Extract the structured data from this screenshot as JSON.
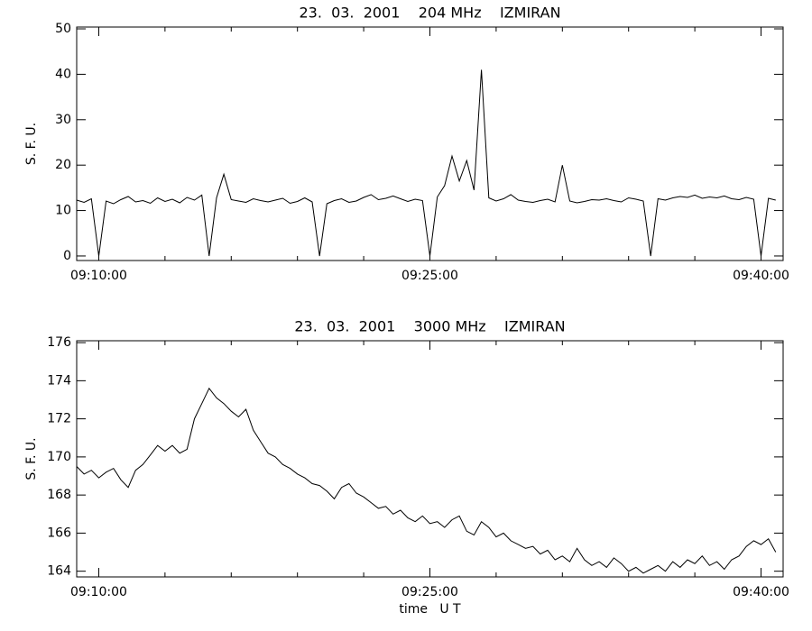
{
  "chart_data": [
    {
      "type": "line",
      "title": "23.  03.  2001    204 MHz    IZMIRAN",
      "ylabel": "S. F. U.",
      "color": "#000000",
      "xlim": [
        "09:09:00",
        "09:41:00"
      ],
      "xticks": [
        "09:10:00",
        "09:25:00",
        "09:40:00"
      ],
      "minor_xticks": [
        "09:13:00",
        "09:16:00",
        "09:19:00",
        "09:22:00",
        "09:28:00",
        "09:31:00",
        "09:34:00",
        "09:37:00"
      ],
      "ylim": [
        -1,
        50.4
      ],
      "yticks": [
        0,
        10,
        20,
        30,
        40,
        50
      ],
      "x": [
        "09:09:00",
        "09:09:20",
        "09:09:40",
        "09:10:00",
        "09:10:20",
        "09:10:40",
        "09:11:00",
        "09:11:20",
        "09:11:40",
        "09:12:00",
        "09:12:20",
        "09:12:40",
        "09:13:00",
        "09:13:20",
        "09:13:40",
        "09:14:00",
        "09:14:20",
        "09:14:40",
        "09:15:00",
        "09:15:20",
        "09:15:40",
        "09:16:00",
        "09:16:20",
        "09:16:40",
        "09:17:00",
        "09:17:20",
        "09:17:40",
        "09:18:00",
        "09:18:20",
        "09:18:40",
        "09:19:00",
        "09:19:20",
        "09:19:40",
        "09:20:00",
        "09:20:20",
        "09:20:40",
        "09:21:00",
        "09:21:20",
        "09:21:40",
        "09:22:00",
        "09:22:20",
        "09:22:40",
        "09:23:00",
        "09:23:20",
        "09:23:40",
        "09:24:00",
        "09:24:20",
        "09:24:40",
        "09:25:00",
        "09:25:20",
        "09:25:40",
        "09:26:00",
        "09:26:20",
        "09:26:40",
        "09:27:00",
        "09:27:20",
        "09:27:40",
        "09:28:00",
        "09:28:20",
        "09:28:40",
        "09:29:00",
        "09:29:20",
        "09:29:40",
        "09:30:00",
        "09:30:20",
        "09:30:40",
        "09:31:00",
        "09:31:20",
        "09:31:40",
        "09:32:00",
        "09:32:20",
        "09:32:40",
        "09:33:00",
        "09:33:20",
        "09:33:40",
        "09:34:00",
        "09:34:20",
        "09:34:40",
        "09:35:00",
        "09:35:20",
        "09:35:40",
        "09:36:00",
        "09:36:20",
        "09:36:40",
        "09:37:00",
        "09:37:20",
        "09:37:40",
        "09:38:00",
        "09:38:20",
        "09:38:40",
        "09:39:00",
        "09:39:20",
        "09:39:40",
        "09:40:00",
        "09:40:20",
        "09:40:40"
      ],
      "values": [
        12.3,
        11.8,
        12.6,
        0,
        12.1,
        11.5,
        12.4,
        13.1,
        11.9,
        12.2,
        11.6,
        12.8,
        12.0,
        12.5,
        11.7,
        12.9,
        12.3,
        13.4,
        0,
        12.8,
        18,
        12.4,
        12.1,
        11.8,
        12.6,
        12.2,
        11.9,
        12.3,
        12.7,
        11.6,
        12.0,
        12.8,
        11.9,
        0,
        11.5,
        12.2,
        12.6,
        11.8,
        12.1,
        12.9,
        13.5,
        12.4,
        12.7,
        13.2,
        12.6,
        12.0,
        12.5,
        12.2,
        0,
        13.0,
        15.5,
        22,
        16.5,
        21,
        14.5,
        41,
        12.8,
        12.1,
        12.6,
        13.5,
        12.3,
        12.0,
        11.8,
        12.2,
        12.5,
        11.9,
        20,
        12.1,
        11.7,
        12.0,
        12.4,
        12.3,
        12.6,
        12.2,
        11.9,
        12.8,
        12.5,
        12.1,
        0,
        12.6,
        12.3,
        12.8,
        13.1,
        12.9,
        13.4,
        12.7,
        13.0,
        12.8,
        13.2,
        12.6,
        12.4,
        12.9,
        12.5,
        0,
        12.7,
        12.3
      ]
    },
    {
      "type": "line",
      "title": "23.  03.  2001    3000 MHz    IZMIRAN",
      "ylabel": "S. F. U.",
      "xlabel": "time   U T",
      "color": "#000000",
      "xlim": [
        "09:09:00",
        "09:41:00"
      ],
      "xticks": [
        "09:10:00",
        "09:25:00",
        "09:40:00"
      ],
      "minor_xticks": [
        "09:13:00",
        "09:16:00",
        "09:19:00",
        "09:22:00",
        "09:28:00",
        "09:31:00",
        "09:34:00",
        "09:37:00"
      ],
      "ylim": [
        163.7,
        176.1
      ],
      "yticks": [
        164,
        166,
        168,
        170,
        172,
        174,
        176
      ],
      "x": [
        "09:09:00",
        "09:09:20",
        "09:09:40",
        "09:10:00",
        "09:10:20",
        "09:10:40",
        "09:11:00",
        "09:11:20",
        "09:11:40",
        "09:12:00",
        "09:12:20",
        "09:12:40",
        "09:13:00",
        "09:13:20",
        "09:13:40",
        "09:14:00",
        "09:14:20",
        "09:14:40",
        "09:15:00",
        "09:15:20",
        "09:15:40",
        "09:16:00",
        "09:16:20",
        "09:16:40",
        "09:17:00",
        "09:17:20",
        "09:17:40",
        "09:18:00",
        "09:18:20",
        "09:18:40",
        "09:19:00",
        "09:19:20",
        "09:19:40",
        "09:20:00",
        "09:20:20",
        "09:20:40",
        "09:21:00",
        "09:21:20",
        "09:21:40",
        "09:22:00",
        "09:22:20",
        "09:22:40",
        "09:23:00",
        "09:23:20",
        "09:23:40",
        "09:24:00",
        "09:24:20",
        "09:24:40",
        "09:25:00",
        "09:25:20",
        "09:25:40",
        "09:26:00",
        "09:26:20",
        "09:26:40",
        "09:27:00",
        "09:27:20",
        "09:27:40",
        "09:28:00",
        "09:28:20",
        "09:28:40",
        "09:29:00",
        "09:29:20",
        "09:29:40",
        "09:30:00",
        "09:30:20",
        "09:30:40",
        "09:31:00",
        "09:31:20",
        "09:31:40",
        "09:32:00",
        "09:32:20",
        "09:32:40",
        "09:33:00",
        "09:33:20",
        "09:33:40",
        "09:34:00",
        "09:34:20",
        "09:34:40",
        "09:35:00",
        "09:35:20",
        "09:35:40",
        "09:36:00",
        "09:36:20",
        "09:36:40",
        "09:37:00",
        "09:37:20",
        "09:37:40",
        "09:38:00",
        "09:38:20",
        "09:38:40",
        "09:39:00",
        "09:39:20",
        "09:39:40",
        "09:40:00",
        "09:40:20",
        "09:40:40"
      ],
      "values": [
        169.5,
        169.1,
        169.3,
        168.9,
        169.2,
        169.4,
        168.8,
        168.4,
        169.3,
        169.6,
        170.1,
        170.6,
        170.3,
        170.6,
        170.2,
        170.4,
        172.0,
        172.8,
        173.6,
        173.1,
        172.8,
        172.4,
        172.1,
        172.5,
        171.4,
        170.8,
        170.2,
        170.0,
        169.6,
        169.4,
        169.1,
        168.9,
        168.6,
        168.5,
        168.2,
        167.8,
        168.4,
        168.6,
        168.1,
        167.9,
        167.6,
        167.3,
        167.4,
        167.0,
        167.2,
        166.8,
        166.6,
        166.9,
        166.5,
        166.6,
        166.3,
        166.7,
        166.9,
        166.1,
        165.9,
        166.6,
        166.3,
        165.8,
        166.0,
        165.6,
        165.4,
        165.2,
        165.3,
        164.9,
        165.1,
        164.6,
        164.8,
        164.5,
        165.2,
        164.6,
        164.3,
        164.5,
        164.2,
        164.7,
        164.4,
        164.0,
        164.2,
        163.9,
        164.1,
        164.3,
        164.0,
        164.5,
        164.2,
        164.6,
        164.4,
        164.8,
        164.3,
        164.5,
        164.1,
        164.6,
        164.8,
        165.3,
        165.6,
        165.4,
        165.7,
        165.0
      ]
    }
  ]
}
